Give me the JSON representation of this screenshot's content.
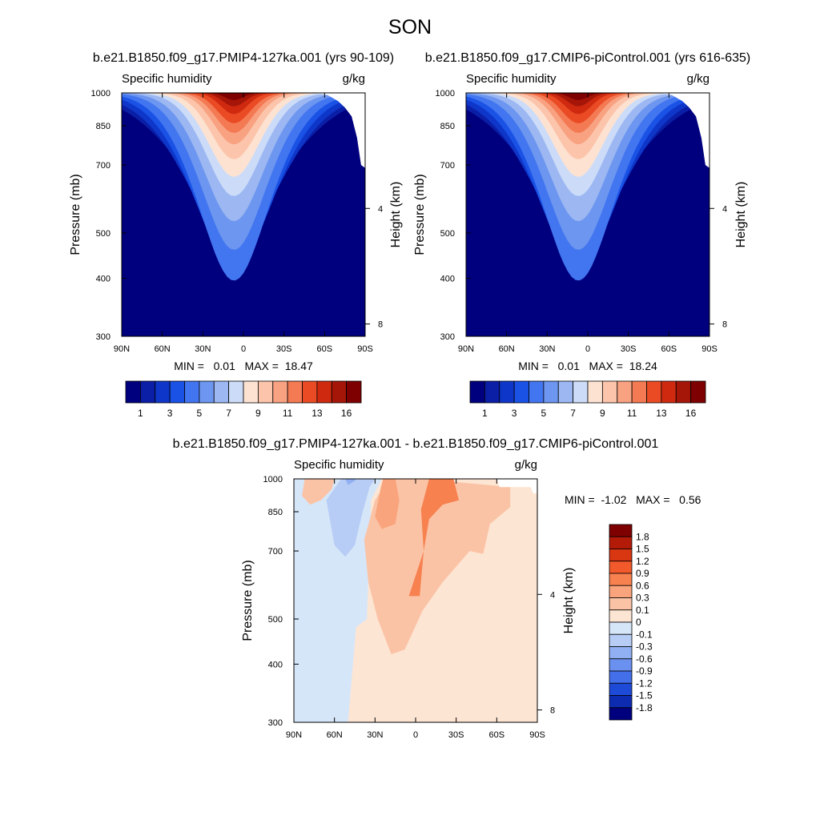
{
  "figure": {
    "title": "SON"
  },
  "chart_data": [
    {
      "type": "heatmap",
      "title": "b.e21.B1850.f09_g17.PMIP4-127ka.001 (yrs 90-109)",
      "left_label": "Specific humidity",
      "right_label": "g/kg",
      "ylabel": "Pressure (mb)",
      "ylabel_right": "Height (km)",
      "x_ticks": [
        "90N",
        "60N",
        "30N",
        "0",
        "30S",
        "60S",
        "90S"
      ],
      "y_ticks": [
        "300",
        "400",
        "500",
        "700",
        "850",
        "1000"
      ],
      "y_ticks_right": [
        "8",
        "4"
      ],
      "x_range": [
        90,
        -90
      ],
      "y_range_mb": [
        1000,
        300
      ],
      "min": 0.01,
      "max": 18.47,
      "stats_text": "MIN =   0.01   MAX =  18.47",
      "colorbar_labels": [
        "1",
        "3",
        "5",
        "7",
        "9",
        "11",
        "13",
        "16"
      ],
      "levels": [
        1,
        2,
        3,
        4,
        5,
        6,
        7,
        8,
        9,
        10,
        11,
        12,
        13,
        14,
        16
      ]
    },
    {
      "type": "heatmap",
      "title": "b.e21.B1850.f09_g17.CMIP6-piControl.001 (yrs 616-635)",
      "left_label": "Specific humidity",
      "right_label": "g/kg",
      "ylabel": "Pressure (mb)",
      "ylabel_right": "Height (km)",
      "x_ticks": [
        "90N",
        "60N",
        "30N",
        "0",
        "30S",
        "60S",
        "90S"
      ],
      "y_ticks": [
        "300",
        "400",
        "500",
        "700",
        "850",
        "1000"
      ],
      "y_ticks_right": [
        "8",
        "4"
      ],
      "x_range": [
        90,
        -90
      ],
      "y_range_mb": [
        1000,
        300
      ],
      "min": 0.01,
      "max": 18.24,
      "stats_text": "MIN =   0.01   MAX =  18.24",
      "colorbar_labels": [
        "1",
        "3",
        "5",
        "7",
        "9",
        "11",
        "13",
        "16"
      ],
      "levels": [
        1,
        2,
        3,
        4,
        5,
        6,
        7,
        8,
        9,
        10,
        11,
        12,
        13,
        14,
        16
      ]
    },
    {
      "type": "heatmap",
      "title": "b.e21.B1850.f09_g17.PMIP4-127ka.001 - b.e21.B1850.f09_g17.CMIP6-piControl.001",
      "left_label": "Specific humidity",
      "right_label": "g/kg",
      "ylabel": "Pressure (mb)",
      "ylabel_right": "Height (km)",
      "x_ticks": [
        "90N",
        "60N",
        "30N",
        "0",
        "30S",
        "60S",
        "90S"
      ],
      "y_ticks": [
        "300",
        "400",
        "500",
        "700",
        "850",
        "1000"
      ],
      "y_ticks_right": [
        "8",
        "4"
      ],
      "x_range": [
        90,
        -90
      ],
      "y_range_mb": [
        1000,
        300
      ],
      "min": -1.02,
      "max": 0.56,
      "stats_text": "MIN =  -1.02   MAX =   0.56",
      "colorbar_labels": [
        "1.8",
        "1.5",
        "1.2",
        "0.9",
        "0.6",
        "0.3",
        "0.1",
        "0",
        "-0.1",
        "-0.3",
        "-0.6",
        "-0.9",
        "-1.2",
        "-1.5",
        "-1.8"
      ]
    }
  ],
  "colors": {
    "abs_scale": [
      "#00007f",
      "#0a1ea6",
      "#0e36c8",
      "#1a52e6",
      "#4275f0",
      "#6c96ef",
      "#9cb7f2",
      "#ccdcf8",
      "#fde2d2",
      "#fcc5ab",
      "#f8a282",
      "#f47a54",
      "#ea4b24",
      "#cf2a10",
      "#a51608",
      "#7f0000"
    ],
    "diff_scale": [
      "#7f0000",
      "#b31a08",
      "#d93612",
      "#f25a2b",
      "#f7814f",
      "#f9a47c",
      "#fbc3a6",
      "#fde5d3",
      "#d6e6f9",
      "#b7cdf6",
      "#90b0f3",
      "#6a90f0",
      "#4370ea",
      "#1e4ad8",
      "#0c2bb0",
      "#00007f"
    ]
  }
}
